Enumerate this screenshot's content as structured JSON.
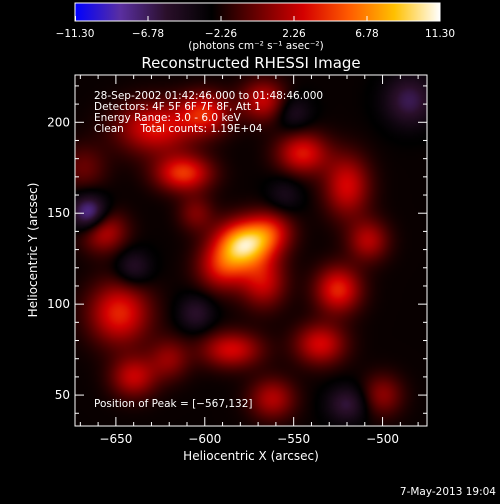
{
  "chart_data": {
    "type": "heatmap",
    "title": "Reconstructed RHESSI Image",
    "xlabel": "Heliocentric X (arcsec)",
    "ylabel": "Heliocentric Y (arcsec)",
    "xlim": [
      -673,
      -475
    ],
    "ylim": [
      33,
      226
    ],
    "x_ticks": [
      -650,
      -600,
      -550,
      -500
    ],
    "x_tick_labels": [
      "−650",
      "−600",
      "−550",
      "−500"
    ],
    "y_ticks": [
      50,
      100,
      150,
      200
    ],
    "y_tick_labels": [
      "50",
      "100",
      "150",
      "200"
    ],
    "colorbar": {
      "range": [
        -11.3,
        11.3
      ],
      "ticks": [
        -11.3,
        -6.78,
        -2.26,
        2.26,
        6.78,
        11.3
      ],
      "tick_labels": [
        "−11.30",
        "−6.78",
        "−2.26",
        "2.26",
        "6.78",
        "11.30"
      ],
      "unit_label": "(photons cm⁻² s⁻¹ asec⁻²)",
      "colors": [
        "#0000ff",
        "#5a2fa0",
        "#2a0f2a",
        "#000000",
        "#6a0000",
        "#d40000",
        "#ff5a00",
        "#ffc000",
        "#ffffff"
      ]
    },
    "annotations": [
      "28-Sep-2002 01:42:46.000 to 01:48:46.000",
      "Detectors: 4F 5F 6F 7F 8F, Att 1",
      "Energy Range: 3.0 - 6.0 keV",
      "Clean     Total counts: 1.19E+04"
    ],
    "peak_label": "Position of Peak = [−567,132]",
    "peak": [
      -567,
      132
    ],
    "sources": [
      {
        "x": -578,
        "y": 133,
        "sx": 11,
        "sy": 9,
        "a": 11.3
      },
      {
        "x": -563,
        "y": 140,
        "sx": 9,
        "sy": 8,
        "a": 5
      },
      {
        "x": -590,
        "y": 120,
        "sx": 10,
        "sy": 9,
        "a": 5.5
      },
      {
        "x": -567,
        "y": 112,
        "sx": 9,
        "sy": 10,
        "a": 5
      },
      {
        "x": -612,
        "y": 172,
        "sx": 11,
        "sy": 7,
        "a": 7
      },
      {
        "x": -628,
        "y": 197,
        "sx": 15,
        "sy": 10,
        "a": 6
      },
      {
        "x": -600,
        "y": 205,
        "sx": 10,
        "sy": 8,
        "a": 6
      },
      {
        "x": -567,
        "y": 212,
        "sx": 9,
        "sy": 8,
        "a": 5
      },
      {
        "x": -545,
        "y": 183,
        "sx": 10,
        "sy": 8,
        "a": 6
      },
      {
        "x": -520,
        "y": 165,
        "sx": 9,
        "sy": 12,
        "a": 5.5
      },
      {
        "x": -508,
        "y": 135,
        "sx": 8,
        "sy": 8,
        "a": 4.5
      },
      {
        "x": -525,
        "y": 108,
        "sx": 9,
        "sy": 9,
        "a": 6.5
      },
      {
        "x": -535,
        "y": 78,
        "sx": 10,
        "sy": 8,
        "a": 5.5
      },
      {
        "x": -648,
        "y": 95,
        "sx": 12,
        "sy": 12,
        "a": 6.5
      },
      {
        "x": -657,
        "y": 140,
        "sx": 9,
        "sy": 8,
        "a": 5
      },
      {
        "x": -640,
        "y": 60,
        "sx": 9,
        "sy": 8,
        "a": 5
      },
      {
        "x": -620,
        "y": 70,
        "sx": 8,
        "sy": 8,
        "a": 3.5
      },
      {
        "x": -585,
        "y": 75,
        "sx": 12,
        "sy": 7,
        "a": 5.5
      },
      {
        "x": -562,
        "y": 48,
        "sx": 9,
        "sy": 8,
        "a": 4.5
      },
      {
        "x": -500,
        "y": 50,
        "sx": 8,
        "sy": 8,
        "a": 3.5
      },
      {
        "x": -605,
        "y": 150,
        "sx": 7,
        "sy": 7,
        "a": 3
      },
      {
        "x": -668,
        "y": 175,
        "sx": 9,
        "sy": 9,
        "a": 2.5
      },
      {
        "x": -665,
        "y": 150,
        "sx": 7,
        "sy": 7,
        "a": -6.5
      },
      {
        "x": -640,
        "y": 120,
        "sx": 7,
        "sy": 7,
        "a": -3
      },
      {
        "x": -485,
        "y": 212,
        "sx": 10,
        "sy": 10,
        "a": -4
      },
      {
        "x": -550,
        "y": 205,
        "sx": 7,
        "sy": 7,
        "a": -2.5
      },
      {
        "x": -555,
        "y": 160,
        "sx": 7,
        "sy": 7,
        "a": -2
      },
      {
        "x": -520,
        "y": 45,
        "sx": 8,
        "sy": 7,
        "a": -3.5
      },
      {
        "x": -605,
        "y": 95,
        "sx": 7,
        "sy": 7,
        "a": -3
      }
    ]
  },
  "footer": {
    "date": "7-May-2013 19:04"
  }
}
